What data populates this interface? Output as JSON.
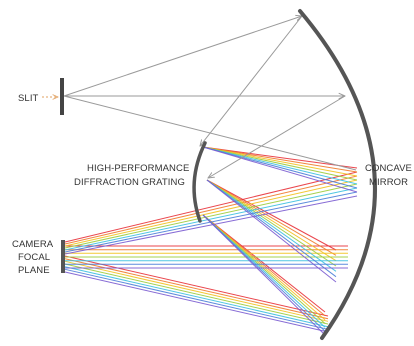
{
  "labels": {
    "slit": "SLIT",
    "grating_line1": "HIGH-PERFORMANCE",
    "grating_line2": "DIFFRACTION GRATING",
    "mirror_line1": "CONCAVE",
    "mirror_line2": "MIRROR",
    "camera_line1": "CAMERA",
    "camera_line2": "FOCAL",
    "camera_line3": "PLANE"
  },
  "colors": {
    "mirror": "#555555",
    "grating": "#555555",
    "slit": "#444444",
    "ray": "#9a9a9a",
    "slit_arrow": "#e0a060",
    "spectrum": [
      "#e8323a",
      "#f07a2a",
      "#f2c21e",
      "#9ccc3c",
      "#3cc0e0",
      "#4a7ed8",
      "#7a5bd0"
    ]
  }
}
